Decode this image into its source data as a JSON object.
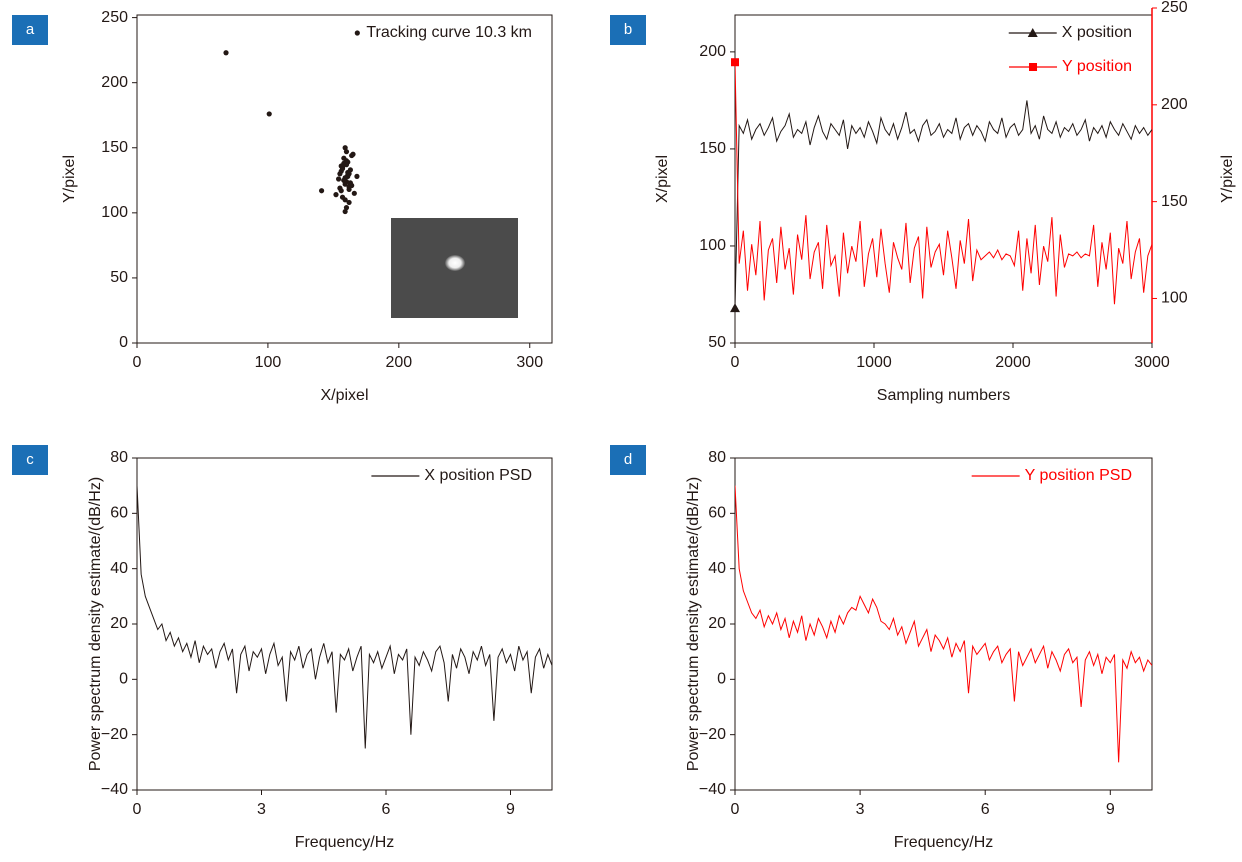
{
  "chart_data": [
    {
      "type": "scatter",
      "panel": "a",
      "x_label": "X/pixel",
      "y_label": "Y/pixel",
      "xlim": [
        0,
        317
      ],
      "ylim": [
        0,
        252
      ],
      "xticks": [
        0,
        100,
        200,
        300
      ],
      "yticks": [
        0,
        50,
        100,
        150,
        200,
        250
      ],
      "legend": "upper right",
      "series": [
        {
          "name": "Tracking curve 10.3 km",
          "color": "#231815",
          "x": [
            68,
            101,
            141,
            155,
            158,
            160,
            162,
            157,
            163,
            159,
            161,
            165,
            156,
            160,
            158,
            162,
            154,
            166,
            159,
            161,
            157,
            163,
            160,
            158,
            164,
            156,
            162,
            159,
            161,
            155,
            160,
            163,
            157,
            168,
            152,
            161,
            159,
            158,
            162,
            160,
            156,
            164,
            159
          ],
          "y": [
            223,
            176,
            117,
            130,
            125,
            140,
            118,
            135,
            122,
            110,
            128,
            145,
            132,
            104,
            138,
            120,
            126,
            115,
            150,
            129,
            112,
            133,
            124,
            142,
            121,
            136,
            108,
            127,
            131,
            119,
            147,
            123,
            134,
            128,
            114,
            139,
            101,
            125,
            130,
            137,
            117,
            144,
            122
          ]
        }
      ]
    },
    {
      "type": "line",
      "panel": "b",
      "x_label": "Sampling numbers",
      "y_label": "X/pixel",
      "y2_label": "Y/pixel",
      "xlim": [
        0,
        3000
      ],
      "ylim": [
        50,
        219
      ],
      "y2lim": [
        77,
        250
      ],
      "xticks": [
        0,
        1000,
        2000,
        3000
      ],
      "yticks": [
        50,
        100,
        150,
        200
      ],
      "y2ticks": [
        100,
        150,
        200,
        250
      ],
      "legend": "upper right",
      "y2_color": "#ff0000",
      "x": [
        0,
        30,
        60,
        90,
        120,
        150,
        180,
        210,
        240,
        270,
        300,
        330,
        360,
        390,
        420,
        450,
        480,
        510,
        540,
        570,
        600,
        630,
        660,
        690,
        720,
        750,
        780,
        810,
        840,
        870,
        900,
        930,
        960,
        990,
        1020,
        1050,
        1080,
        1110,
        1140,
        1170,
        1200,
        1230,
        1260,
        1290,
        1320,
        1350,
        1380,
        1410,
        1440,
        1470,
        1500,
        1530,
        1560,
        1590,
        1620,
        1650,
        1680,
        1710,
        1740,
        1770,
        1800,
        1830,
        1860,
        1890,
        1920,
        1950,
        1980,
        2010,
        2040,
        2070,
        2100,
        2130,
        2160,
        2190,
        2220,
        2250,
        2280,
        2310,
        2340,
        2370,
        2400,
        2430,
        2460,
        2490,
        2520,
        2550,
        2580,
        2610,
        2640,
        2670,
        2700,
        2730,
        2760,
        2790,
        2820,
        2850,
        2880,
        2910,
        2940,
        2970,
        3000
      ],
      "series": [
        {
          "name": "X position",
          "color": "#231815",
          "marker": "triangle",
          "values": [
            68,
            162,
            158,
            165,
            155,
            160,
            163,
            157,
            161,
            166,
            154,
            159,
            162,
            168,
            156,
            160,
            158,
            164,
            152,
            161,
            167,
            159,
            155,
            163,
            160,
            157,
            165,
            150,
            162,
            158,
            161,
            156,
            164,
            159,
            153,
            166,
            160,
            157,
            163,
            155,
            161,
            169,
            158,
            160,
            154,
            162,
            165,
            157,
            159,
            163,
            156,
            160,
            158,
            166,
            155,
            161,
            163,
            157,
            162,
            159,
            154,
            164,
            160,
            158,
            166,
            156,
            161,
            163,
            157,
            160,
            175,
            158,
            162,
            155,
            167,
            160,
            158,
            164,
            156,
            161,
            159,
            163,
            157,
            160,
            165,
            154,
            161,
            158,
            162,
            156,
            164,
            160,
            157,
            163,
            159,
            155,
            162,
            158,
            161,
            157,
            160
          ]
        },
        {
          "name": "Y position",
          "color": "#ff0000",
          "marker": "square",
          "axis": "y2",
          "values": [
            222,
            118,
            135,
            104,
            128,
            112,
            140,
            99,
            125,
            131,
            108,
            137,
            115,
            126,
            102,
            133,
            120,
            143,
            110,
            124,
            129,
            105,
            138,
            117,
            122,
            101,
            134,
            113,
            127,
            119,
            140,
            106,
            123,
            131,
            111,
            136,
            118,
            103,
            129,
            121,
            115,
            139,
            108,
            126,
            132,
            100,
            137,
            116,
            124,
            128,
            112,
            135,
            121,
            105,
            130,
            118,
            141,
            109,
            125,
            120,
            122,
            124,
            121,
            125,
            120,
            123,
            122,
            117,
            135,
            104,
            131,
            113,
            138,
            107,
            127,
            119,
            142,
            101,
            133,
            116,
            123,
            122,
            124,
            121,
            123,
            122,
            138,
            106,
            129,
            115,
            134,
            97,
            126,
            118,
            140,
            110,
            124,
            131,
            103,
            122,
            128
          ]
        }
      ]
    },
    {
      "type": "line",
      "panel": "c",
      "x_label": "Frequency/Hz",
      "y_label": "Power spectrum density estimate/(dB/Hz)",
      "xlim": [
        0,
        10
      ],
      "ylim": [
        -40,
        80
      ],
      "xticks": [
        0,
        3,
        6,
        9
      ],
      "yticks": [
        {
          "value": -40,
          "label": "−40"
        },
        {
          "value": -20,
          "label": "−20"
        },
        0,
        20,
        40,
        60,
        80
      ],
      "legend": "upper right",
      "x": [
        0,
        0.1,
        0.2,
        0.3,
        0.4,
        0.5,
        0.6,
        0.7,
        0.8,
        0.9,
        1,
        1.1,
        1.2,
        1.3,
        1.4,
        1.5,
        1.6,
        1.7,
        1.8,
        1.9,
        2,
        2.1,
        2.2,
        2.3,
        2.4,
        2.5,
        2.6,
        2.7,
        2.8,
        2.9,
        3,
        3.1,
        3.2,
        3.3,
        3.4,
        3.5,
        3.6,
        3.7,
        3.8,
        3.9,
        4,
        4.1,
        4.2,
        4.3,
        4.4,
        4.5,
        4.6,
        4.7,
        4.8,
        4.9,
        5,
        5.1,
        5.2,
        5.3,
        5.4,
        5.5,
        5.6,
        5.7,
        5.8,
        5.9,
        6,
        6.1,
        6.2,
        6.3,
        6.4,
        6.5,
        6.6,
        6.7,
        6.8,
        6.9,
        7,
        7.1,
        7.2,
        7.3,
        7.4,
        7.5,
        7.6,
        7.7,
        7.8,
        7.9,
        8,
        8.1,
        8.2,
        8.3,
        8.4,
        8.5,
        8.6,
        8.7,
        8.8,
        8.9,
        9,
        9.1,
        9.2,
        9.3,
        9.4,
        9.5,
        9.6,
        9.7,
        9.8,
        9.9,
        10
      ],
      "series": [
        {
          "name": "X position PSD",
          "color": "#231815",
          "values": [
            70,
            38,
            30,
            26,
            22,
            18,
            20,
            14,
            17,
            12,
            15,
            10,
            13,
            8,
            14,
            6,
            12,
            9,
            11,
            4,
            10,
            13,
            7,
            11,
            -5,
            9,
            12,
            3,
            10,
            8,
            11,
            2,
            9,
            13,
            5,
            8,
            -8,
            10,
            7,
            12,
            4,
            9,
            11,
            0,
            8,
            13,
            6,
            10,
            -12,
            9,
            7,
            11,
            3,
            8,
            12,
            -25,
            9,
            6,
            10,
            4,
            8,
            12,
            2,
            9,
            7,
            11,
            -20,
            8,
            5,
            10,
            7,
            3,
            10,
            12,
            6,
            -8,
            9,
            4,
            11,
            8,
            2,
            10,
            7,
            12,
            5,
            9,
            -15,
            8,
            11,
            6,
            9,
            3,
            12,
            7,
            10,
            -5,
            8,
            11,
            4,
            9,
            5
          ]
        }
      ]
    },
    {
      "type": "line",
      "panel": "d",
      "x_label": "Frequency/Hz",
      "y_label": "Power spectrum density estimate/(dB/Hz)",
      "xlim": [
        0,
        10
      ],
      "ylim": [
        -40,
        80
      ],
      "xticks": [
        0,
        3,
        6,
        9
      ],
      "yticks": [
        {
          "value": -40,
          "label": "−40"
        },
        {
          "value": -20,
          "label": "−20"
        },
        0,
        20,
        40,
        60,
        80
      ],
      "legend": "upper right",
      "x": [
        0,
        0.1,
        0.2,
        0.3,
        0.4,
        0.5,
        0.6,
        0.7,
        0.8,
        0.9,
        1,
        1.1,
        1.2,
        1.3,
        1.4,
        1.5,
        1.6,
        1.7,
        1.8,
        1.9,
        2,
        2.1,
        2.2,
        2.3,
        2.4,
        2.5,
        2.6,
        2.7,
        2.8,
        2.9,
        3,
        3.1,
        3.2,
        3.3,
        3.4,
        3.5,
        3.6,
        3.7,
        3.8,
        3.9,
        4,
        4.1,
        4.2,
        4.3,
        4.4,
        4.5,
        4.6,
        4.7,
        4.8,
        4.9,
        5,
        5.1,
        5.2,
        5.3,
        5.4,
        5.5,
        5.6,
        5.7,
        5.8,
        5.9,
        6,
        6.1,
        6.2,
        6.3,
        6.4,
        6.5,
        6.6,
        6.7,
        6.8,
        6.9,
        7,
        7.1,
        7.2,
        7.3,
        7.4,
        7.5,
        7.6,
        7.7,
        7.8,
        7.9,
        8,
        8.1,
        8.2,
        8.3,
        8.4,
        8.5,
        8.6,
        8.7,
        8.8,
        8.9,
        9,
        9.1,
        9.2,
        9.3,
        9.4,
        9.5,
        9.6,
        9.7,
        9.8,
        9.9,
        10
      ],
      "series": [
        {
          "name": "Y position PSD",
          "color": "#ff0000",
          "values": [
            70,
            40,
            32,
            28,
            24,
            22,
            25,
            19,
            23,
            20,
            24,
            18,
            22,
            15,
            21,
            17,
            23,
            14,
            20,
            16,
            22,
            19,
            15,
            21,
            17,
            23,
            20,
            24,
            26,
            25,
            30,
            27,
            24,
            29,
            26,
            21,
            20,
            18,
            22,
            16,
            19,
            13,
            17,
            21,
            12,
            15,
            18,
            10,
            16,
            14,
            11,
            15,
            8,
            13,
            10,
            14,
            -5,
            12,
            9,
            11,
            13,
            7,
            10,
            12,
            6,
            9,
            11,
            -8,
            10,
            5,
            8,
            11,
            6,
            9,
            12,
            4,
            10,
            7,
            3,
            9,
            11,
            6,
            8,
            -10,
            7,
            10,
            5,
            9,
            2,
            8,
            6,
            9,
            -30,
            7,
            4,
            10,
            6,
            8,
            3,
            7,
            5
          ]
        }
      ]
    }
  ]
}
